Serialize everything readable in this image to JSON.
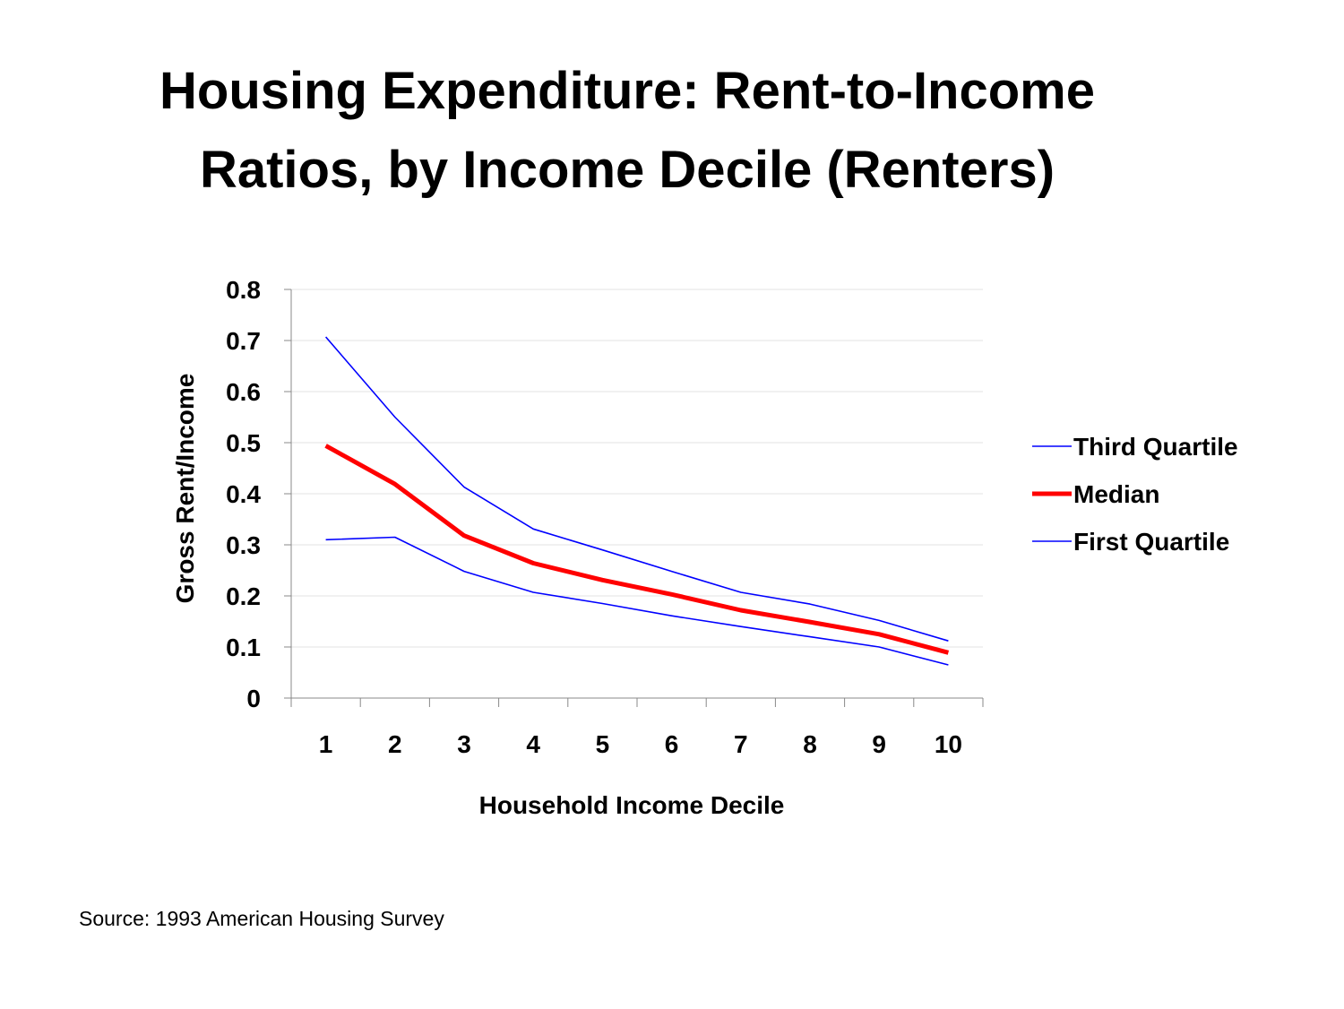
{
  "slide": {
    "title_line1": "Housing Expenditure: Rent-to-Income",
    "title_line2": "Ratios, by Income Decile (Renters)",
    "source": "Source: 1993 American Housing Survey"
  },
  "chart_data": {
    "type": "line",
    "xlabel": "Household Income Decile",
    "ylabel": "Gross Rent/Income",
    "categories": [
      "1",
      "2",
      "3",
      "4",
      "5",
      "6",
      "7",
      "8",
      "9",
      "10"
    ],
    "ylim": [
      0,
      0.8
    ],
    "yticks": [
      "0",
      "0.1",
      "0.2",
      "0.3",
      "0.4",
      "0.5",
      "0.6",
      "0.7",
      "0.8"
    ],
    "grid": true,
    "legend_position": "right",
    "series": [
      {
        "name": "Third Quartile",
        "color": "#0000ff",
        "emphasis": false,
        "values": [
          0.707,
          0.55,
          0.413,
          0.331,
          0.29,
          0.248,
          0.207,
          0.184,
          0.152,
          0.112
        ]
      },
      {
        "name": "Median",
        "color": "#ff0000",
        "emphasis": true,
        "values": [
          0.494,
          0.419,
          0.318,
          0.264,
          0.231,
          0.203,
          0.172,
          0.149,
          0.125,
          0.089
        ]
      },
      {
        "name": "First Quartile",
        "color": "#0000ff",
        "emphasis": false,
        "values": [
          0.31,
          0.315,
          0.248,
          0.207,
          0.185,
          0.161,
          0.14,
          0.12,
          0.1,
          0.065
        ]
      }
    ]
  }
}
